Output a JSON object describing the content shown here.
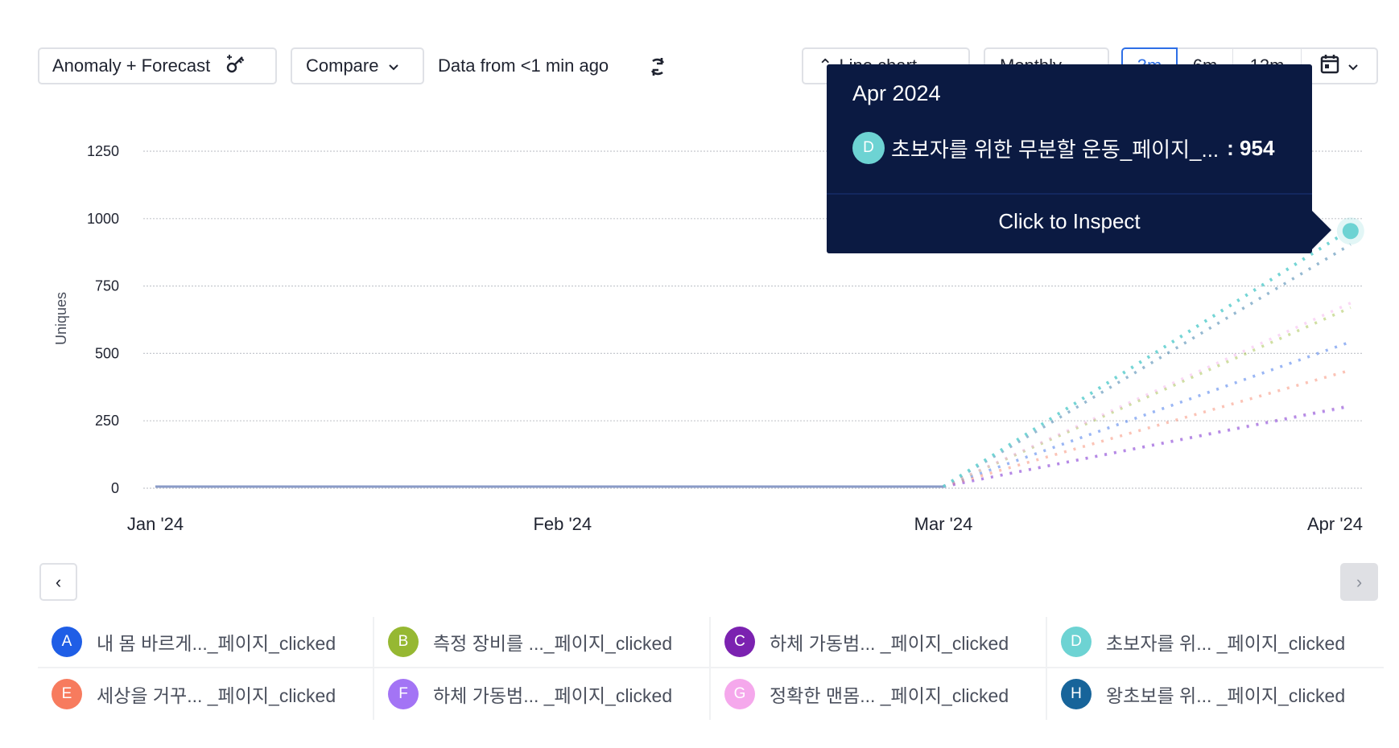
{
  "toolbar": {
    "anomaly_label": "Anomaly + Forecast",
    "compare_label": "Compare",
    "data_freshness": "Data from <1 min ago",
    "chart_type_label": "Line chart",
    "interval_label": "Monthly",
    "ranges": [
      "3m",
      "6m",
      "12m"
    ],
    "active_range": "3m"
  },
  "tooltip": {
    "title": "Apr 2024",
    "series_letter": "D",
    "series_label": "초보자를 위한 무분할 운동_페이지_...",
    "value": ": 954",
    "action": "Click to Inspect"
  },
  "legend": [
    {
      "letter": "A",
      "label": "내 몸 바르게..._페이지_clicked",
      "color": "#1f5ee6"
    },
    {
      "letter": "B",
      "label": "측정 장비를 ..._페이지_clicked",
      "color": "#96b832"
    },
    {
      "letter": "C",
      "label": "하체 가동범... _페이지_clicked",
      "color": "#7b22b0"
    },
    {
      "letter": "D",
      "label": "초보자를 위... _페이지_clicked",
      "color": "#6dd3d3"
    },
    {
      "letter": "E",
      "label": "세상을 거꾸... _페이지_clicked",
      "color": "#f77b5e"
    },
    {
      "letter": "F",
      "label": "하체 가동범... _페이지_clicked",
      "color": "#a374f5"
    },
    {
      "letter": "G",
      "label": "정확한 맨몸... _페이지_clicked",
      "color": "#f5a8ec"
    },
    {
      "letter": "H",
      "label": "왕초보를 위... _페이지_clicked",
      "color": "#17649a"
    }
  ],
  "chart_data": {
    "type": "line",
    "ylabel": "Uniques",
    "xlabel": "",
    "ylim": [
      0,
      1250
    ],
    "yticks": [
      "0",
      "250",
      "500",
      "750",
      "1000",
      "1250"
    ],
    "xticks": [
      "Jan '24",
      "Feb '24",
      "Mar '24",
      "Apr '24"
    ],
    "x": [
      "2024-01-01",
      "2024-02-01",
      "2024-03-01",
      "2024-04-01"
    ],
    "forecast_from": "2024-03-01",
    "grid": true,
    "highlighted": {
      "series": "D",
      "x": "2024-04-01",
      "value": 954
    },
    "series": [
      {
        "letter": "A",
        "color": "#1f5ee6",
        "values": [
          0,
          0,
          0,
          537
        ]
      },
      {
        "letter": "B",
        "color": "#96b832",
        "values": [
          0,
          0,
          0,
          664
        ]
      },
      {
        "letter": "C",
        "color": "#7b22b0",
        "values": [
          0,
          0,
          0,
          300
        ]
      },
      {
        "letter": "D",
        "color": "#6dd3d3",
        "values": [
          0,
          0,
          0,
          954
        ]
      },
      {
        "letter": "E",
        "color": "#f77b5e",
        "values": [
          0,
          0,
          0,
          432
        ]
      },
      {
        "letter": "F",
        "color": "#a374f5",
        "values": [
          0,
          0,
          0,
          297
        ]
      },
      {
        "letter": "G",
        "color": "#f5a8ec",
        "values": [
          0,
          0,
          0,
          681
        ]
      },
      {
        "letter": "H",
        "color": "#17649a",
        "values": [
          0,
          0,
          0,
          898
        ]
      }
    ]
  }
}
